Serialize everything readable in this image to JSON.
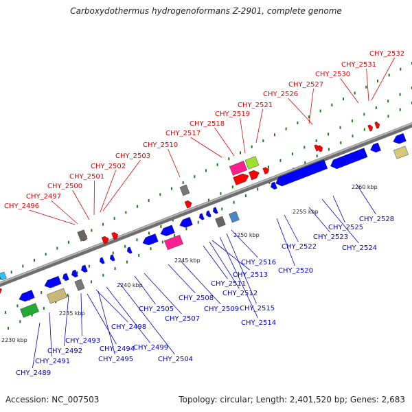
{
  "title": "Carboxydothermus hydrogenoformans Z-2901, complete genome",
  "footer": {
    "accession": "Accession: NC_007503",
    "summary": "Topology: circular; Length: 2,401,520 bp; Genes: 2,683"
  },
  "colors": {
    "forward_label": "#e00000",
    "reverse_label": "#0000cc",
    "backbone": "#888888",
    "tick_dot": "#1a7a1a"
  },
  "scale_ticks": [
    "2230 kbp",
    "2235 kbp",
    "2240 kbp",
    "2245 kbp",
    "2250 kbp",
    "2255 kbp",
    "2260 kbp"
  ],
  "forward_genes": [
    "CHY_2496",
    "CHY_2497",
    "CHY_2500",
    "CHY_2501",
    "CHY_2502",
    "CHY_2503",
    "CHY_2510",
    "CHY_2517",
    "CHY_2518",
    "CHY_2519",
    "CHY_2521",
    "CHY_2526",
    "CHY_2527",
    "CHY_2530",
    "CHY_2531",
    "CHY_2532"
  ],
  "reverse_genes": [
    "CHY_2489",
    "CHY_2491",
    "CHY_2492",
    "CHY_2493",
    "CHY_2494",
    "CHY_2495",
    "CHY_2498",
    "CHY_2499",
    "CHY_2504",
    "CHY_2505",
    "CHY_2507",
    "CHY_2508",
    "CHY_2509",
    "CHY_2511",
    "CHY_2512",
    "CHY_2513",
    "CHY_2514",
    "CHY_2515",
    "CHY_2516",
    "CHY_2520",
    "CHY_2522",
    "CHY_2523",
    "CHY_2524",
    "CHY_2525",
    "CHY_2528"
  ]
}
